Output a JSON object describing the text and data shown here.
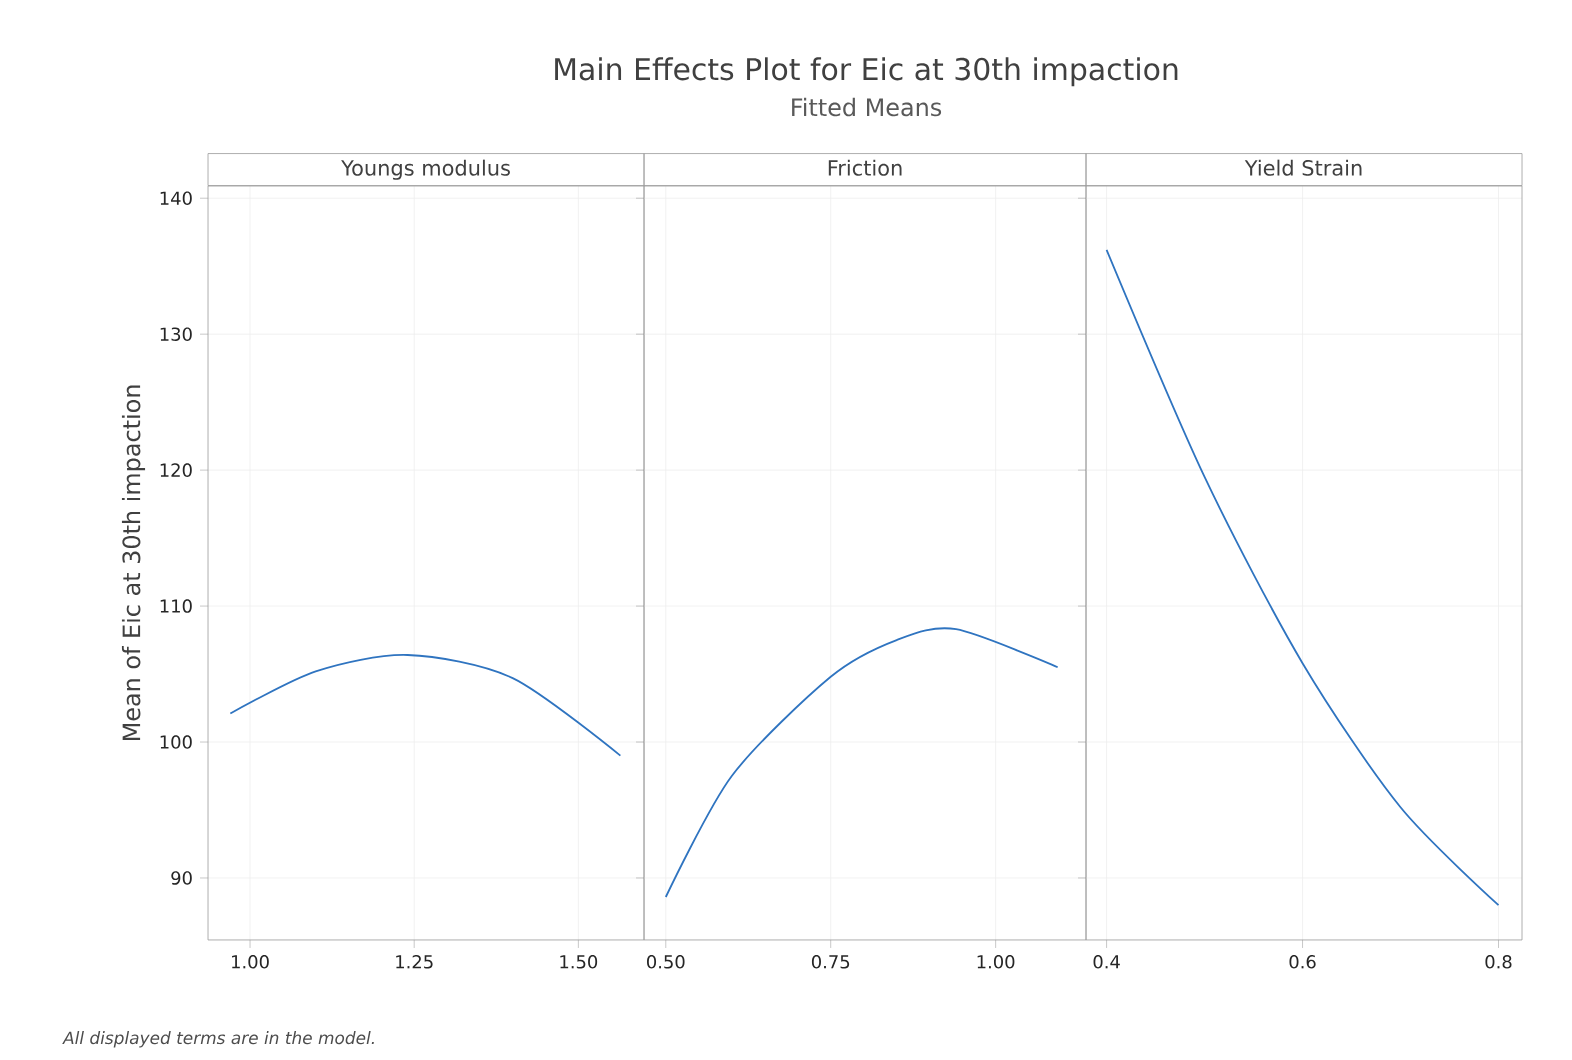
{
  "chart_data": [
    {
      "type": "line",
      "xlabel": "Youngs modulus",
      "ylabel": "Mean of Eic at 30th impaction",
      "annotations": [
        "All displayed terms are in the model."
      ],
      "grid": true,
      "marker": "none",
      "series": [
        {
          "color": "#2f74c0",
          "x": [
            0.97,
            1.1,
            1.24,
            1.4,
            1.564
          ],
          "values": [
            102.1,
            105.2,
            106.4,
            104.7,
            99.0
          ]
        }
      ],
      "xlim": [
        0.936,
        1.6
      ],
      "ylim": [
        85.44,
        140.9
      ],
      "xticks": [
        {
          "value": 1,
          "label": "1.00"
        },
        {
          "value": 1.25,
          "label": "1.25"
        },
        {
          "value": 1.5,
          "label": "1.50"
        }
      ],
      "yticks": [
        90,
        100,
        110,
        120,
        130,
        140
      ]
    },
    {
      "type": "line",
      "title": "Main Effects Plot for Eic at 30th impaction",
      "subtitle": "Fitted Means",
      "xlabel": "Friction",
      "grid": true,
      "marker": "none",
      "tick_labels": "x",
      "series": [
        {
          "color": "#2f74c0",
          "x": [
            0.5,
            0.6,
            0.75,
            0.85,
            0.94,
            1.094
          ],
          "values": [
            88.6,
            97.5,
            104.8,
            107.5,
            108.3,
            105.5
          ]
        }
      ],
      "xlim": [
        0.467,
        1.137
      ],
      "ylim": [
        85.44,
        140.9
      ],
      "xticks": [
        {
          "value": 0.5,
          "label": "0.50"
        },
        {
          "value": 0.75,
          "label": "0.75"
        },
        {
          "value": 1,
          "label": "1.00"
        }
      ],
      "yticks": [
        90,
        100,
        110,
        120,
        130,
        140
      ]
    },
    {
      "type": "line",
      "xlabel": "Yield Strain",
      "grid": true,
      "marker": "none",
      "tick_labels": "x",
      "series": [
        {
          "color": "#2f74c0",
          "x": [
            0.4,
            0.5,
            0.6,
            0.7,
            0.8
          ],
          "values": [
            136.2,
            119.5,
            105.8,
            95.2,
            88.0
          ]
        }
      ],
      "xlim": [
        0.379,
        0.824
      ],
      "ylim": [
        85.44,
        140.9
      ],
      "xticks": [
        0.4,
        0.6,
        0.8
      ],
      "yticks": [
        90,
        100,
        110,
        120,
        130,
        140
      ]
    }
  ]
}
